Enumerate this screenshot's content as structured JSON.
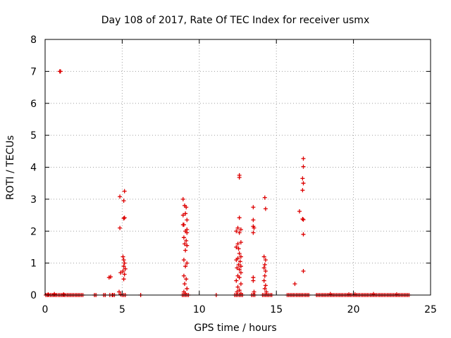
{
  "chart_data": {
    "type": "scatter",
    "title": "Day 108 of 2017, Rate Of TEC Index for receiver usmx",
    "xlabel": "GPS time / hours",
    "ylabel": "ROTI / TECUs",
    "xlim": [
      0,
      25
    ],
    "ylim": [
      0,
      8
    ],
    "xticks": [
      0,
      5,
      10,
      15,
      20,
      25
    ],
    "yticks": [
      0,
      1,
      2,
      3,
      4,
      5,
      6,
      7,
      8
    ],
    "grid": true,
    "marker": "plus",
    "color": "#dd0000",
    "series": [
      {
        "name": "ROTI",
        "points": [
          [
            0.05,
            0
          ],
          [
            0.15,
            0
          ],
          [
            0.25,
            0
          ],
          [
            0.35,
            0
          ],
          [
            0.45,
            0
          ],
          [
            0.55,
            0
          ],
          [
            0.65,
            0
          ],
          [
            0.75,
            0
          ],
          [
            0.85,
            0
          ],
          [
            0.95,
            0
          ],
          [
            1.05,
            0
          ],
          [
            1.15,
            0
          ],
          [
            1.25,
            0
          ],
          [
            1.35,
            0
          ],
          [
            1.45,
            0
          ],
          [
            1.55,
            0
          ],
          [
            1.65,
            0
          ],
          [
            1.75,
            0
          ],
          [
            1.85,
            0
          ],
          [
            1.95,
            0
          ],
          [
            2.05,
            0
          ],
          [
            2.15,
            0
          ],
          [
            2.25,
            0
          ],
          [
            2.35,
            0
          ],
          [
            2.45,
            0
          ],
          [
            0.2,
            0.02
          ],
          [
            0.6,
            0.03
          ],
          [
            1.2,
            0.02
          ],
          [
            0.95,
            7.0
          ],
          [
            1.0,
            7.0
          ],
          [
            3.2,
            0
          ],
          [
            3.3,
            0
          ],
          [
            3.8,
            0
          ],
          [
            3.9,
            0
          ],
          [
            4.2,
            0
          ],
          [
            4.35,
            0
          ],
          [
            4.4,
            0
          ],
          [
            4.5,
            0
          ],
          [
            4.15,
            0.55
          ],
          [
            4.25,
            0.57
          ],
          [
            4.8,
            0.1
          ],
          [
            4.9,
            0.02
          ],
          [
            5.0,
            0
          ],
          [
            5.1,
            0
          ],
          [
            5.2,
            0
          ],
          [
            4.85,
            2.1
          ],
          [
            4.85,
            3.08
          ],
          [
            5.15,
            3.25
          ],
          [
            5.1,
            2.95
          ],
          [
            5.1,
            2.4
          ],
          [
            5.15,
            2.42
          ],
          [
            5.05,
            1.2
          ],
          [
            5.1,
            1.1
          ],
          [
            5.15,
            1.0
          ],
          [
            5.1,
            0.9
          ],
          [
            5.05,
            0.75
          ],
          [
            5.15,
            0.65
          ],
          [
            5.1,
            0.5
          ],
          [
            4.9,
            0.7
          ],
          [
            5.2,
            0.82
          ],
          [
            6.2,
            0
          ],
          [
            8.9,
            0
          ],
          [
            9.0,
            0
          ],
          [
            9.1,
            0
          ],
          [
            9.2,
            0
          ],
          [
            9.3,
            0
          ],
          [
            8.95,
            3.0
          ],
          [
            9.05,
            2.8
          ],
          [
            9.15,
            2.75
          ],
          [
            9.1,
            2.55
          ],
          [
            8.95,
            2.5
          ],
          [
            9.2,
            2.35
          ],
          [
            9.0,
            2.2
          ],
          [
            9.1,
            2.0
          ],
          [
            9.2,
            2.05
          ],
          [
            9.0,
            1.8
          ],
          [
            9.15,
            1.7
          ],
          [
            9.05,
            1.6
          ],
          [
            9.2,
            1.55
          ],
          [
            9.1,
            1.4
          ],
          [
            9.0,
            1.1
          ],
          [
            9.2,
            1.0
          ],
          [
            9.1,
            0.9
          ],
          [
            9.0,
            0.6
          ],
          [
            9.15,
            0.5
          ],
          [
            9.05,
            0.35
          ],
          [
            9.2,
            0.2
          ],
          [
            9.0,
            0.1
          ],
          [
            9.1,
            0.05
          ],
          [
            8.95,
            2.2
          ],
          [
            9.2,
            1.95
          ],
          [
            11.1,
            0
          ],
          [
            12.3,
            0
          ],
          [
            12.4,
            0
          ],
          [
            12.5,
            0
          ],
          [
            12.6,
            0
          ],
          [
            12.7,
            0
          ],
          [
            12.8,
            0
          ],
          [
            12.6,
            3.75
          ],
          [
            12.6,
            3.68
          ],
          [
            12.6,
            2.42
          ],
          [
            12.5,
            2.1
          ],
          [
            12.4,
            2.0
          ],
          [
            12.7,
            2.05
          ],
          [
            12.6,
            1.95
          ],
          [
            12.5,
            1.6
          ],
          [
            12.7,
            1.65
          ],
          [
            12.4,
            1.5
          ],
          [
            12.55,
            1.45
          ],
          [
            12.6,
            1.3
          ],
          [
            12.7,
            1.2
          ],
          [
            12.5,
            1.15
          ],
          [
            12.4,
            1.1
          ],
          [
            12.65,
            1.05
          ],
          [
            12.55,
            0.95
          ],
          [
            12.7,
            0.9
          ],
          [
            12.45,
            0.85
          ],
          [
            12.6,
            0.8
          ],
          [
            12.7,
            0.7
          ],
          [
            12.5,
            0.6
          ],
          [
            12.6,
            0.55
          ],
          [
            12.4,
            0.45
          ],
          [
            12.7,
            0.35
          ],
          [
            12.5,
            0.25
          ],
          [
            12.6,
            0.15
          ],
          [
            12.45,
            0.1
          ],
          [
            12.7,
            0.05
          ],
          [
            13.5,
            2.75
          ],
          [
            13.5,
            2.35
          ],
          [
            13.5,
            2.15
          ],
          [
            13.55,
            2.1
          ],
          [
            13.5,
            1.95
          ],
          [
            13.5,
            0.55
          ],
          [
            13.5,
            0.45
          ],
          [
            13.55,
            0.1
          ],
          [
            13.4,
            0
          ],
          [
            13.5,
            0
          ],
          [
            13.6,
            0
          ],
          [
            14.1,
            0
          ],
          [
            14.2,
            0
          ],
          [
            14.3,
            0
          ],
          [
            14.4,
            0
          ],
          [
            14.5,
            0
          ],
          [
            14.6,
            0
          ],
          [
            14.7,
            0
          ],
          [
            14.25,
            3.05
          ],
          [
            14.3,
            2.7
          ],
          [
            14.2,
            1.2
          ],
          [
            14.3,
            1.1
          ],
          [
            14.25,
            0.95
          ],
          [
            14.2,
            0.85
          ],
          [
            14.3,
            0.75
          ],
          [
            14.25,
            0.6
          ],
          [
            14.2,
            0.45
          ],
          [
            14.3,
            0.3
          ],
          [
            14.25,
            0.2
          ],
          [
            14.35,
            0.1
          ],
          [
            15.7,
            0
          ],
          [
            15.8,
            0
          ],
          [
            15.9,
            0
          ],
          [
            16.0,
            0
          ],
          [
            16.1,
            0
          ],
          [
            16.2,
            0
          ],
          [
            16.3,
            0
          ],
          [
            16.4,
            0
          ],
          [
            16.5,
            0
          ],
          [
            16.6,
            0
          ],
          [
            16.7,
            0
          ],
          [
            16.8,
            0
          ],
          [
            16.9,
            0
          ],
          [
            17.0,
            0
          ],
          [
            17.1,
            0
          ],
          [
            16.2,
            0.35
          ],
          [
            16.5,
            2.62
          ],
          [
            16.75,
            4.27
          ],
          [
            16.75,
            4.02
          ],
          [
            16.7,
            3.65
          ],
          [
            16.75,
            3.5
          ],
          [
            16.7,
            3.28
          ],
          [
            16.7,
            2.38
          ],
          [
            16.75,
            2.36
          ],
          [
            16.75,
            1.9
          ],
          [
            16.75,
            0.75
          ],
          [
            17.6,
            0
          ],
          [
            17.7,
            0
          ],
          [
            17.8,
            0
          ],
          [
            17.9,
            0
          ],
          [
            18.0,
            0
          ],
          [
            18.1,
            0
          ],
          [
            18.2,
            0
          ],
          [
            18.3,
            0
          ],
          [
            18.4,
            0
          ],
          [
            18.5,
            0
          ],
          [
            18.6,
            0
          ],
          [
            18.7,
            0
          ],
          [
            18.8,
            0
          ],
          [
            18.9,
            0
          ],
          [
            19.0,
            0
          ],
          [
            19.1,
            0
          ],
          [
            19.2,
            0
          ],
          [
            19.3,
            0
          ],
          [
            19.4,
            0
          ],
          [
            19.5,
            0
          ],
          [
            19.6,
            0
          ],
          [
            19.7,
            0
          ],
          [
            19.8,
            0
          ],
          [
            19.9,
            0
          ],
          [
            20.0,
            0
          ],
          [
            20.1,
            0
          ],
          [
            20.2,
            0
          ],
          [
            20.3,
            0
          ],
          [
            20.4,
            0
          ],
          [
            20.5,
            0
          ],
          [
            20.6,
            0
          ],
          [
            20.7,
            0
          ],
          [
            20.8,
            0
          ],
          [
            20.9,
            0
          ],
          [
            21.0,
            0
          ],
          [
            21.1,
            0
          ],
          [
            21.2,
            0
          ],
          [
            21.3,
            0
          ],
          [
            21.4,
            0
          ],
          [
            21.5,
            0
          ],
          [
            21.6,
            0
          ],
          [
            21.7,
            0
          ],
          [
            21.8,
            0
          ],
          [
            21.9,
            0
          ],
          [
            22.0,
            0
          ],
          [
            22.1,
            0
          ],
          [
            22.2,
            0
          ],
          [
            22.3,
            0
          ],
          [
            22.4,
            0
          ],
          [
            22.5,
            0
          ],
          [
            22.6,
            0
          ],
          [
            22.7,
            0
          ],
          [
            22.8,
            0
          ],
          [
            22.9,
            0
          ],
          [
            23.0,
            0
          ],
          [
            23.1,
            0
          ],
          [
            23.2,
            0
          ],
          [
            23.3,
            0
          ],
          [
            23.4,
            0
          ],
          [
            23.5,
            0
          ],
          [
            23.6,
            0
          ],
          [
            18.5,
            0.03
          ],
          [
            19.7,
            0.02
          ],
          [
            21.3,
            0.03
          ],
          [
            22.8,
            0.02
          ],
          [
            20.1,
            0.02
          ]
        ]
      }
    ]
  }
}
